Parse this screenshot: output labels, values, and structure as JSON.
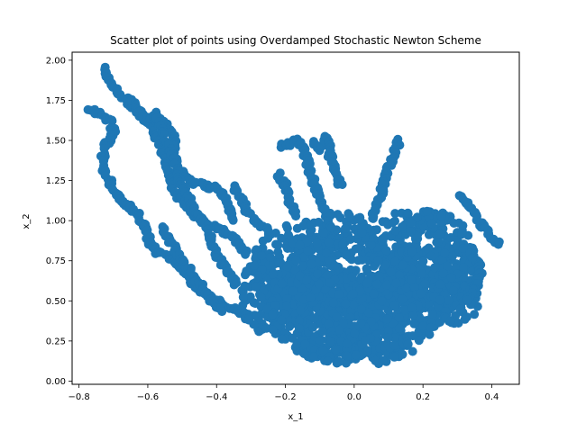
{
  "chart_data": {
    "type": "scatter",
    "title": "Scatter plot of points using Overdamped Stochastic Newton Scheme",
    "xlabel": "x_1",
    "ylabel": "x_2",
    "xlim": [
      -0.82,
      0.48
    ],
    "ylim": [
      -0.02,
      2.05
    ],
    "xticks": [
      -0.8,
      -0.6,
      -0.4,
      -0.2,
      0.0,
      0.2,
      0.4
    ],
    "xtick_labels": [
      "−0.8",
      "−0.6",
      "−0.4",
      "−0.2",
      "0.0",
      "0.2",
      "0.4"
    ],
    "yticks": [
      0.0,
      0.25,
      0.5,
      0.75,
      1.0,
      1.25,
      1.5,
      1.75,
      2.0
    ],
    "ytick_labels": [
      "0.00",
      "0.25",
      "0.50",
      "0.75",
      "1.00",
      "1.25",
      "1.50",
      "1.75",
      "2.00"
    ],
    "grid": false,
    "marker_color": "#1f77b4",
    "series": [
      {
        "paths": [
          [
            [
              -0.73,
              1.95
            ],
            [
              -0.71,
              1.86
            ],
            [
              -0.69,
              1.82
            ],
            [
              -0.66,
              1.74
            ],
            [
              -0.64,
              1.7
            ],
            [
              -0.62,
              1.66
            ],
            [
              -0.6,
              1.62
            ],
            [
              -0.58,
              1.55
            ],
            [
              -0.56,
              1.46
            ],
            [
              -0.55,
              1.38
            ],
            [
              -0.54,
              1.3
            ],
            [
              -0.53,
              1.22
            ],
            [
              -0.51,
              1.15
            ],
            [
              -0.49,
              1.1
            ],
            [
              -0.47,
              1.05
            ],
            [
              -0.44,
              1.0
            ],
            [
              -0.41,
              0.96
            ],
            [
              -0.38,
              0.93
            ],
            [
              -0.35,
              0.9
            ],
            [
              -0.33,
              0.84
            ],
            [
              -0.31,
              0.8
            ]
          ],
          [
            [
              -0.77,
              1.7
            ],
            [
              -0.74,
              1.66
            ],
            [
              -0.71,
              1.62
            ],
            [
              -0.7,
              1.55
            ],
            [
              -0.72,
              1.48
            ],
            [
              -0.73,
              1.4
            ],
            [
              -0.73,
              1.32
            ],
            [
              -0.71,
              1.24
            ],
            [
              -0.69,
              1.16
            ],
            [
              -0.66,
              1.1
            ],
            [
              -0.63,
              1.04
            ],
            [
              -0.61,
              0.98
            ],
            [
              -0.6,
              0.9
            ],
            [
              -0.59,
              0.84
            ],
            [
              -0.57,
              0.8
            ],
            [
              -0.53,
              0.76
            ],
            [
              -0.5,
              0.7
            ],
            [
              -0.48,
              0.64
            ],
            [
              -0.46,
              0.58
            ],
            [
              -0.43,
              0.54
            ],
            [
              -0.4,
              0.5
            ],
            [
              -0.36,
              0.46
            ],
            [
              -0.33,
              0.42
            ],
            [
              -0.3,
              0.38
            ]
          ],
          [
            [
              -0.66,
              1.76
            ],
            [
              -0.63,
              1.7
            ],
            [
              -0.6,
              1.64
            ],
            [
              -0.56,
              1.62
            ],
            [
              -0.53,
              1.55
            ],
            [
              -0.52,
              1.46
            ],
            [
              -0.52,
              1.38
            ],
            [
              -0.5,
              1.3
            ],
            [
              -0.48,
              1.25
            ],
            [
              -0.44,
              1.22
            ],
            [
              -0.4,
              1.2
            ],
            [
              -0.37,
              1.14
            ],
            [
              -0.36,
              1.06
            ],
            [
              -0.35,
              1.0
            ]
          ],
          [
            [
              -0.58,
              1.68
            ],
            [
              -0.56,
              1.58
            ],
            [
              -0.55,
              1.5
            ],
            [
              -0.53,
              1.42
            ],
            [
              -0.52,
              1.34
            ],
            [
              -0.51,
              1.26
            ],
            [
              -0.49,
              1.18
            ],
            [
              -0.47,
              1.1
            ],
            [
              -0.45,
              1.02
            ],
            [
              -0.43,
              0.96
            ],
            [
              -0.42,
              0.9
            ],
            [
              -0.41,
              0.84
            ],
            [
              -0.4,
              0.78
            ],
            [
              -0.38,
              0.72
            ],
            [
              -0.36,
              0.66
            ],
            [
              -0.34,
              0.6
            ]
          ],
          [
            [
              -0.56,
              0.95
            ],
            [
              -0.54,
              0.88
            ],
            [
              -0.52,
              0.82
            ],
            [
              -0.5,
              0.76
            ],
            [
              -0.48,
              0.7
            ],
            [
              -0.46,
              0.64
            ],
            [
              -0.44,
              0.58
            ],
            [
              -0.42,
              0.52
            ],
            [
              -0.4,
              0.48
            ],
            [
              -0.38,
              0.44
            ]
          ],
          [
            [
              -0.35,
              1.22
            ],
            [
              -0.33,
              1.14
            ],
            [
              -0.31,
              1.06
            ],
            [
              -0.29,
              1.0
            ],
            [
              -0.27,
              0.96
            ],
            [
              -0.25,
              0.94
            ]
          ],
          [
            [
              -0.21,
              1.46
            ],
            [
              -0.19,
              1.48
            ],
            [
              -0.17,
              1.5
            ],
            [
              -0.15,
              1.46
            ],
            [
              -0.14,
              1.4
            ],
            [
              -0.13,
              1.32
            ],
            [
              -0.12,
              1.26
            ],
            [
              -0.11,
              1.2
            ],
            [
              -0.1,
              1.14
            ],
            [
              -0.09,
              1.08
            ],
            [
              -0.08,
              1.02
            ],
            [
              -0.07,
              0.96
            ]
          ],
          [
            [
              -0.12,
              1.48
            ],
            [
              -0.1,
              1.45
            ],
            [
              -0.08,
              1.52
            ],
            [
              -0.07,
              1.46
            ],
            [
              -0.07,
              1.4
            ],
            [
              -0.06,
              1.34
            ],
            [
              -0.05,
              1.28
            ],
            [
              -0.04,
              1.22
            ]
          ],
          [
            [
              -0.22,
              1.3
            ],
            [
              -0.2,
              1.22
            ],
            [
              -0.19,
              1.14
            ],
            [
              -0.18,
              1.08
            ],
            [
              -0.17,
              1.02
            ]
          ],
          [
            [
              0.13,
              1.5
            ],
            [
              0.12,
              1.44
            ],
            [
              0.11,
              1.38
            ],
            [
              0.1,
              1.32
            ],
            [
              0.09,
              1.26
            ],
            [
              0.08,
              1.18
            ],
            [
              0.07,
              1.12
            ],
            [
              0.06,
              1.06
            ],
            [
              0.05,
              1.0
            ]
          ],
          [
            [
              0.31,
              1.16
            ],
            [
              0.33,
              1.1
            ],
            [
              0.35,
              1.04
            ],
            [
              0.37,
              0.98
            ],
            [
              0.39,
              0.92
            ],
            [
              0.41,
              0.86
            ],
            [
              0.42,
              0.86
            ]
          ],
          [
            [
              0.34,
              0.8
            ],
            [
              0.36,
              0.74
            ],
            [
              0.37,
              0.68
            ],
            [
              0.36,
              0.62
            ],
            [
              0.34,
              0.56
            ],
            [
              0.33,
              0.5
            ]
          ]
        ],
        "blobs": [
          {
            "cx": 0.03,
            "cy": 0.42,
            "rx": 0.2,
            "ry": 0.28
          },
          {
            "cx": -0.1,
            "cy": 0.45,
            "rx": 0.16,
            "ry": 0.3
          },
          {
            "cx": 0.15,
            "cy": 0.55,
            "rx": 0.14,
            "ry": 0.3
          },
          {
            "cx": -0.18,
            "cy": 0.7,
            "rx": 0.12,
            "ry": 0.28
          },
          {
            "cx": 0.25,
            "cy": 0.75,
            "rx": 0.1,
            "ry": 0.3
          },
          {
            "cx": 0.0,
            "cy": 0.75,
            "rx": 0.18,
            "ry": 0.22
          },
          {
            "cx": 0.0,
            "cy": 0.2,
            "rx": 0.18,
            "ry": 0.1
          },
          {
            "cx": -0.26,
            "cy": 0.55,
            "rx": 0.07,
            "ry": 0.25
          },
          {
            "cx": 0.3,
            "cy": 0.55,
            "rx": 0.07,
            "ry": 0.2
          },
          {
            "cx": -0.05,
            "cy": 0.95,
            "rx": 0.1,
            "ry": 0.1
          },
          {
            "cx": 0.18,
            "cy": 0.98,
            "rx": 0.1,
            "ry": 0.1
          }
        ]
      }
    ]
  }
}
